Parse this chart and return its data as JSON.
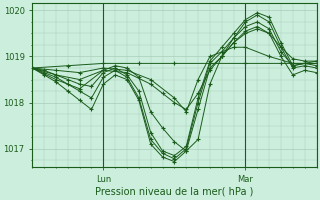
{
  "xlabel": "Pression niveau de la mer( hPa )",
  "bg_color": "#cceedd",
  "grid_color": "#aaccbb",
  "line_color": "#1a5c1a",
  "border_color": "#1a5c1a",
  "ylim": [
    1016.6,
    1020.15
  ],
  "xlim": [
    0,
    48
  ],
  "yticks": [
    1017,
    1018,
    1019,
    1020
  ],
  "xticks_pos": [
    12,
    36
  ],
  "xticks_labels": [
    "Lun",
    "Mar"
  ],
  "series": [
    {
      "x": [
        0,
        6,
        12,
        18,
        24,
        30,
        36,
        42,
        48
      ],
      "y": [
        1018.75,
        1018.8,
        1018.85,
        1018.85,
        1018.85,
        1018.85,
        1018.85,
        1018.85,
        1018.85
      ]
    },
    {
      "x": [
        0,
        4,
        8,
        12,
        16,
        20,
        24,
        26,
        28,
        30,
        32,
        34,
        36,
        40,
        44,
        48
      ],
      "y": [
        1018.75,
        1018.7,
        1018.65,
        1018.75,
        1018.7,
        1018.5,
        1018.1,
        1017.8,
        1018.5,
        1019.0,
        1019.1,
        1019.2,
        1019.2,
        1019.0,
        1018.85,
        1018.85
      ]
    },
    {
      "x": [
        0,
        4,
        8,
        12,
        16,
        20,
        22,
        24,
        26,
        28,
        30,
        32,
        34,
        36,
        38,
        40,
        42,
        44,
        46,
        48
      ],
      "y": [
        1018.75,
        1018.6,
        1018.5,
        1018.7,
        1018.65,
        1018.4,
        1018.2,
        1018.0,
        1017.85,
        1018.2,
        1018.7,
        1019.0,
        1019.3,
        1019.5,
        1019.6,
        1019.5,
        1019.2,
        1018.95,
        1018.9,
        1018.9
      ]
    },
    {
      "x": [
        0,
        4,
        8,
        12,
        14,
        16,
        18,
        20,
        22,
        24,
        26,
        28,
        30,
        32,
        34,
        36,
        38,
        40,
        42,
        44,
        46,
        48
      ],
      "y": [
        1018.75,
        1018.5,
        1018.3,
        1018.7,
        1018.8,
        1018.75,
        1018.55,
        1017.8,
        1017.45,
        1017.15,
        1016.95,
        1017.2,
        1018.4,
        1019.0,
        1019.4,
        1019.65,
        1019.75,
        1019.6,
        1019.1,
        1018.8,
        1018.85,
        1018.9
      ]
    },
    {
      "x": [
        0,
        2,
        4,
        6,
        8,
        10,
        12,
        14,
        16,
        18,
        20,
        22,
        24,
        26,
        28,
        30,
        32,
        34,
        36,
        38,
        40,
        42,
        44,
        46,
        48
      ],
      "y": [
        1018.75,
        1018.7,
        1018.6,
        1018.5,
        1018.4,
        1018.35,
        1018.65,
        1018.75,
        1018.6,
        1018.25,
        1017.35,
        1016.95,
        1016.85,
        1017.05,
        1018.1,
        1018.9,
        1019.2,
        1019.5,
        1019.8,
        1019.95,
        1019.85,
        1019.3,
        1018.8,
        1018.85,
        1018.8
      ]
    },
    {
      "x": [
        0,
        2,
        4,
        6,
        8,
        10,
        12,
        14,
        16,
        18,
        20,
        22,
        24,
        26,
        28,
        30,
        32,
        34,
        36,
        38,
        40,
        42,
        44,
        46,
        48
      ],
      "y": [
        1018.75,
        1018.65,
        1018.55,
        1018.4,
        1018.25,
        1018.1,
        1018.55,
        1018.7,
        1018.55,
        1018.1,
        1017.2,
        1016.9,
        1016.78,
        1017.0,
        1018.0,
        1018.85,
        1019.1,
        1019.4,
        1019.75,
        1019.9,
        1019.75,
        1019.2,
        1018.75,
        1018.8,
        1018.75
      ]
    },
    {
      "x": [
        0,
        2,
        4,
        6,
        8,
        10,
        12,
        14,
        16,
        18,
        20,
        22,
        24,
        26,
        28,
        30,
        32,
        34,
        36,
        38,
        40,
        42,
        44,
        46,
        48
      ],
      "y": [
        1018.75,
        1018.6,
        1018.45,
        1018.25,
        1018.05,
        1017.85,
        1018.4,
        1018.6,
        1018.5,
        1018.05,
        1017.1,
        1016.82,
        1016.72,
        1016.95,
        1017.85,
        1018.75,
        1019.0,
        1019.3,
        1019.55,
        1019.65,
        1019.5,
        1019.0,
        1018.6,
        1018.7,
        1018.65
      ]
    }
  ]
}
